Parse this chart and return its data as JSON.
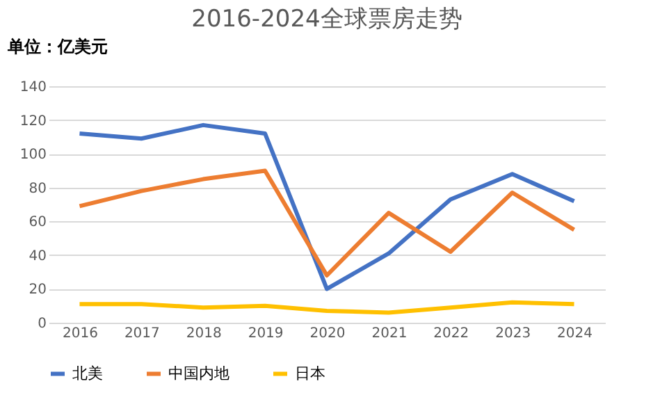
{
  "chart_data": {
    "type": "line",
    "title": "2016-2024全球票房走势",
    "ylabel": "单位：亿美元",
    "categories": [
      "2016",
      "2017",
      "2018",
      "2019",
      "2020",
      "2021",
      "2022",
      "2023",
      "2024"
    ],
    "series": [
      {
        "name": "北美",
        "color": "#4472c4",
        "values": [
          112,
          109,
          117,
          112,
          20,
          41,
          73,
          88,
          72
        ]
      },
      {
        "name": "中国内地",
        "color": "#ed7d31",
        "values": [
          69,
          78,
          85,
          90,
          28,
          65,
          42,
          77,
          55
        ]
      },
      {
        "name": "日本",
        "color": "#ffc000",
        "values": [
          11,
          11,
          9,
          10,
          7,
          6,
          9,
          12,
          11
        ]
      }
    ],
    "ylim": [
      0,
      140
    ],
    "yticks": [
      0,
      20,
      40,
      60,
      80,
      100,
      120,
      140
    ],
    "grid": "y",
    "legend": "bottom",
    "marker": "none",
    "line_style": "solid"
  }
}
